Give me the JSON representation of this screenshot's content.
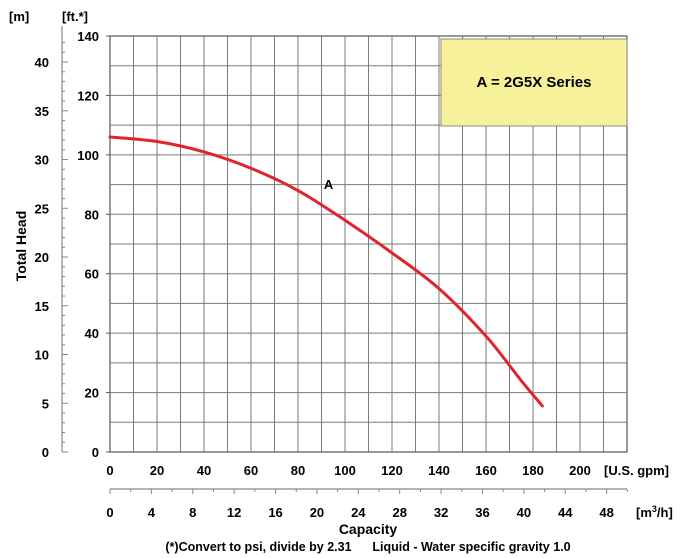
{
  "chart_data": {
    "type": "line",
    "units": {
      "left_head": "[m]",
      "head_ft": "[ft.*]",
      "flow_gpm": "[U.S. gpm]",
      "flow_m3h_prefix": "[m",
      "flow_m3h_sup": "3",
      "flow_m3h_suffix": "/h]"
    },
    "ylabel": "Total Head",
    "xlabel": "Capacity",
    "footnote": "(*)Convert to psi, divide by 2.31      Liquid - Water specific gravity 1.0",
    "legend_text": "A = 2G5X Series",
    "legend_color": "#f7f29a",
    "curve_color": "#e0242b",
    "grid": true,
    "xlim": [
      0,
      220
    ],
    "ylim": [
      0,
      140
    ],
    "x_ticks_gpm": [
      "0",
      "20",
      "40",
      "60",
      "80",
      "100",
      "120",
      "140",
      "160",
      "180",
      "200"
    ],
    "x_ticks_m3h": [
      "0",
      "4",
      "8",
      "12",
      "16",
      "20",
      "24",
      "28",
      "32",
      "36",
      "40",
      "44",
      "48"
    ],
    "y_ticks_ft": [
      "0",
      "20",
      "40",
      "60",
      "80",
      "100",
      "120",
      "140"
    ],
    "y_ticks_m": [
      "0",
      "5",
      "10",
      "15",
      "20",
      "25",
      "30",
      "35",
      "40"
    ],
    "series": [
      {
        "name": "A",
        "x": [
          0,
          20,
          40,
          60,
          80,
          100,
          120,
          140,
          160,
          175,
          184
        ],
        "y": [
          106,
          104.5,
          101,
          95.5,
          88,
          78,
          67,
          55,
          39,
          24,
          15.5
        ]
      }
    ]
  }
}
